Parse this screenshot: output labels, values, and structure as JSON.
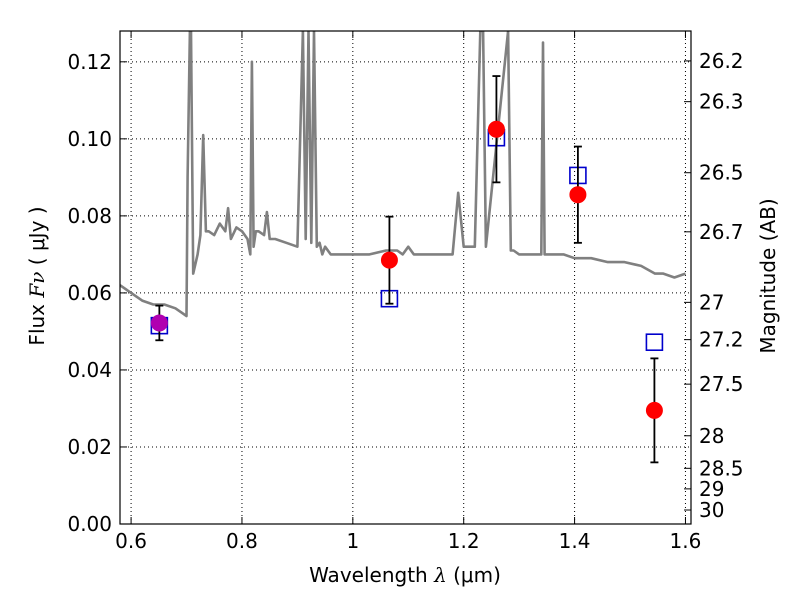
{
  "chart_data": {
    "type": "scatter",
    "title": "",
    "xlabel": {
      "prefix": "Wavelength",
      "symbol": "λ",
      "unit": "(μm)"
    },
    "ylabel": {
      "prefix": "Flux",
      "symbol": "Fν",
      "unit": "( μJy )"
    },
    "y2label": "Magnitude (AB)",
    "xlim": [
      0.58,
      1.61
    ],
    "ylim": [
      0.0,
      0.128
    ],
    "x_ticks": [
      0.6,
      0.8,
      1.0,
      1.2,
      1.4,
      1.6
    ],
    "x_tick_labels": [
      "0.6",
      "0.8",
      "1",
      "1.2",
      "1.4",
      "1.6"
    ],
    "y_ticks": [
      0.0,
      0.02,
      0.04,
      0.06,
      0.08,
      0.1,
      0.12
    ],
    "y_tick_labels": [
      "0.00",
      "0.02",
      "0.04",
      "0.06",
      "0.08",
      "0.10",
      "0.12"
    ],
    "mag_ticks": [
      26.2,
      26.3,
      26.5,
      26.7,
      27,
      27.2,
      27.5,
      28,
      28.5,
      29,
      30
    ],
    "mag_tick_labels": [
      "26.2",
      "26.3",
      "26.5",
      "26.7",
      "27",
      "27.2",
      "27.5",
      "28",
      "28.5",
      "29",
      "30"
    ],
    "grid": true,
    "series": [
      {
        "kind": "line",
        "color": "#808080",
        "x": [
          0.58,
          0.6,
          0.62,
          0.64,
          0.66,
          0.68,
          0.69,
          0.7,
          0.702,
          0.706,
          0.708,
          0.712,
          0.72,
          0.725,
          0.73,
          0.735,
          0.74,
          0.75,
          0.76,
          0.77,
          0.775,
          0.78,
          0.79,
          0.8,
          0.81,
          0.815,
          0.818,
          0.821,
          0.825,
          0.83,
          0.84,
          0.845,
          0.85,
          0.86,
          0.88,
          0.9,
          0.91,
          0.915,
          0.92,
          0.925,
          0.93,
          0.935,
          0.94,
          0.945,
          0.95,
          0.96,
          0.98,
          1.0,
          1.03,
          1.06,
          1.08,
          1.09,
          1.1,
          1.11,
          1.13,
          1.15,
          1.18,
          1.19,
          1.2,
          1.21,
          1.22,
          1.23,
          1.235,
          1.24,
          1.28,
          1.285,
          1.29,
          1.3,
          1.33,
          1.34,
          1.343,
          1.346,
          1.35,
          1.36,
          1.38,
          1.4,
          1.43,
          1.46,
          1.49,
          1.52,
          1.545,
          1.56,
          1.58,
          1.6
        ],
        "y": [
          0.062,
          0.06,
          0.058,
          0.057,
          0.057,
          0.056,
          0.055,
          0.054,
          0.09,
          0.128,
          0.128,
          0.065,
          0.07,
          0.075,
          0.101,
          0.076,
          0.076,
          0.075,
          0.078,
          0.076,
          0.082,
          0.074,
          0.077,
          0.076,
          0.074,
          0.07,
          0.12,
          0.072,
          0.076,
          0.076,
          0.075,
          0.081,
          0.074,
          0.074,
          0.073,
          0.072,
          0.128,
          0.074,
          0.128,
          0.073,
          0.128,
          0.072,
          0.073,
          0.07,
          0.072,
          0.07,
          0.07,
          0.07,
          0.07,
          0.071,
          0.071,
          0.07,
          0.072,
          0.07,
          0.07,
          0.07,
          0.07,
          0.086,
          0.072,
          0.072,
          0.072,
          0.128,
          0.128,
          0.072,
          0.128,
          0.071,
          0.071,
          0.07,
          0.07,
          0.07,
          0.125,
          0.07,
          0.07,
          0.07,
          0.07,
          0.069,
          0.069,
          0.068,
          0.068,
          0.067,
          0.065,
          0.065,
          0.064,
          0.065
        ]
      },
      {
        "kind": "errorbar",
        "marker": "circle",
        "color": "#ff0000",
        "x": [
          1.066,
          1.259,
          1.406,
          1.544
        ],
        "y": [
          0.0685,
          0.1025,
          0.0855,
          0.0295
        ],
        "yerr": [
          0.0113,
          0.0138,
          0.0125,
          0.0135
        ]
      },
      {
        "kind": "errorbar",
        "marker": "circle",
        "color": "#b000b0",
        "x": [
          0.651
        ],
        "y": [
          0.0522
        ],
        "yerr": [
          0.0045
        ]
      },
      {
        "kind": "scatter",
        "marker": "open-square",
        "color": "#0000cc",
        "x": [
          0.651,
          1.066,
          1.259,
          1.406,
          1.544
        ],
        "y": [
          0.0515,
          0.0585,
          0.1003,
          0.0905,
          0.0472
        ]
      }
    ]
  }
}
